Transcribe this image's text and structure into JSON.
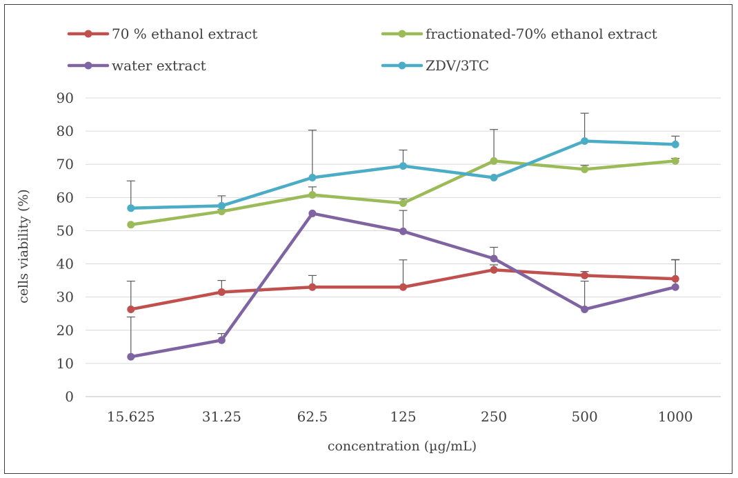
{
  "chart_data": {
    "type": "line",
    "categories": [
      "15.625",
      "31.25",
      "62.5",
      "125",
      "250",
      "500",
      "1000"
    ],
    "xlabel": "concentration (µg/mL)",
    "ylabel": "cells viability (%)",
    "ylim": [
      0,
      90
    ],
    "yticks": [
      "0",
      "10",
      "20",
      "30",
      "40",
      "50",
      "60",
      "70",
      "80",
      "90"
    ],
    "grid": "horizontal",
    "legend_position": "top",
    "error_bars": "upper only",
    "series": [
      {
        "name": "70 % ethanol extract",
        "color": "#c0504d",
        "values": [
          26.3,
          31.5,
          33,
          33,
          38.2,
          36.5,
          35.5
        ],
        "errors": [
          8.5,
          3.5,
          3.5,
          8.2,
          1.5,
          1.2,
          5.7
        ]
      },
      {
        "name": "fractionated-70% ethanol extract",
        "color": "#9bbb59",
        "values": [
          51.8,
          55.8,
          60.8,
          58.3,
          71,
          68.5,
          71
        ],
        "errors": [
          0,
          0.6,
          2.4,
          1.3,
          9.5,
          1.2,
          0.8
        ]
      },
      {
        "name": "water extract",
        "color": "#8064a2",
        "values": [
          12,
          17,
          55.2,
          49.8,
          41.6,
          26.3,
          33
        ],
        "errors": [
          12,
          2,
          0,
          6.3,
          3.4,
          8.5,
          8.3
        ]
      },
      {
        "name": "ZDV/3TC",
        "color": "#4bacc6",
        "values": [
          56.8,
          57.5,
          66,
          69.5,
          66,
          77,
          76
        ],
        "errors": [
          8.2,
          3,
          14.3,
          4.8,
          0,
          8.4,
          2.5
        ]
      }
    ]
  }
}
